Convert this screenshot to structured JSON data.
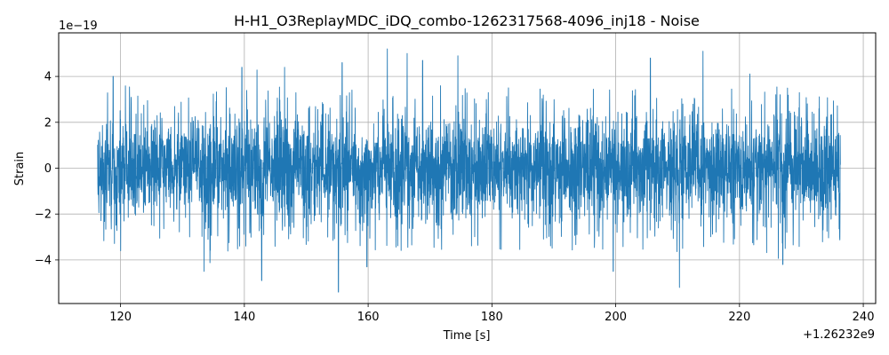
{
  "chart_data": {
    "type": "line",
    "title": "H-H1_O3ReplayMDC_iDQ_combo-1262317568-4096_inj18 - Noise",
    "xlabel": "Time [s]",
    "ylabel": "Strain",
    "x_offset_label": "+1.26232e9",
    "y_exponent_label": "1e−19",
    "xlim": [
      110,
      242
    ],
    "ylim": [
      -5.9,
      5.9
    ],
    "x_ticks": [
      {
        "value": 120,
        "label": "120"
      },
      {
        "value": 140,
        "label": "140"
      },
      {
        "value": 160,
        "label": "160"
      },
      {
        "value": 180,
        "label": "180"
      },
      {
        "value": 200,
        "label": "200"
      },
      {
        "value": 220,
        "label": "220"
      },
      {
        "value": 240,
        "label": "240"
      }
    ],
    "y_ticks": [
      {
        "value": -4,
        "label": "−4"
      },
      {
        "value": -2,
        "label": "−2"
      },
      {
        "value": 0,
        "label": "0"
      },
      {
        "value": 2,
        "label": "2"
      },
      {
        "value": 4,
        "label": "4"
      }
    ],
    "grid": true,
    "series": [
      {
        "color": "#1f77b4",
        "x_range": [
          116.3,
          236.3
        ],
        "typical_envelope": [
          -2.0,
          2.0
        ],
        "max": 5.2,
        "min": -5.4,
        "notable_peaks": [
          {
            "x": 118.8,
            "y": 4.0
          },
          {
            "x": 139.6,
            "y": 4.4
          },
          {
            "x": 146.5,
            "y": 4.4
          },
          {
            "x": 155.8,
            "y": 4.6
          },
          {
            "x": 163.1,
            "y": 5.2
          },
          {
            "x": 166.3,
            "y": 5.0
          },
          {
            "x": 168.8,
            "y": 4.7
          },
          {
            "x": 174.5,
            "y": 4.9
          },
          {
            "x": 205.6,
            "y": 4.8
          },
          {
            "x": 214.1,
            "y": 5.1
          }
        ],
        "notable_troughs": [
          {
            "x": 133.5,
            "y": -4.5
          },
          {
            "x": 142.8,
            "y": -4.9
          },
          {
            "x": 155.2,
            "y": -5.4
          },
          {
            "x": 159.8,
            "y": -4.3
          },
          {
            "x": 199.6,
            "y": -4.5
          },
          {
            "x": 210.3,
            "y": -5.2
          },
          {
            "x": 227.0,
            "y": -4.2
          }
        ]
      }
    ]
  }
}
